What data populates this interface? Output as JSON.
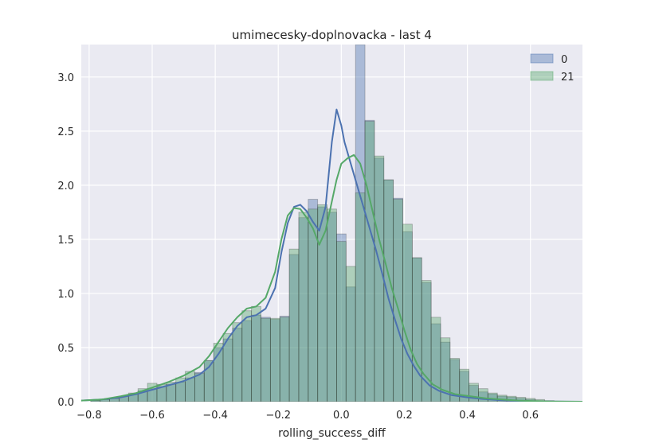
{
  "chart_data": {
    "type": "histogram",
    "title": "umimecesky-doplnovacka - last 4",
    "xlabel": "rolling_success_diff",
    "ylabel": "",
    "xlim": [
      -0.825,
      0.765
    ],
    "ylim": [
      0,
      3.3
    ],
    "x_ticks": [
      -0.8,
      -0.6,
      -0.4,
      -0.2,
      0.0,
      0.2,
      0.4,
      0.6
    ],
    "x_tick_labels": [
      "−0.8",
      "−0.6",
      "−0.4",
      "−0.2",
      "0.0",
      "0.2",
      "0.4",
      "0.6"
    ],
    "y_ticks": [
      0.0,
      0.5,
      1.0,
      1.5,
      2.0,
      2.5,
      3.0
    ],
    "y_tick_labels": [
      "0.0",
      "0.5",
      "1.0",
      "1.5",
      "2.0",
      "2.5",
      "3.0"
    ],
    "grid": true,
    "legend_position": "top-right",
    "bin_width": 0.03,
    "bins_start": -0.795,
    "series": [
      {
        "name": "0",
        "color": "#4c72b0",
        "hist_values": [
          0.01,
          0.02,
          0.03,
          0.05,
          0.07,
          0.1,
          0.12,
          0.14,
          0.16,
          0.18,
          0.22,
          0.27,
          0.38,
          0.5,
          0.58,
          0.68,
          0.75,
          0.8,
          0.78,
          0.76,
          0.79,
          1.36,
          1.7,
          1.87,
          1.8,
          1.75,
          1.55,
          1.06,
          3.3,
          2.6,
          2.25,
          2.05,
          1.88,
          1.57,
          1.33,
          1.1,
          0.72,
          0.55,
          0.39,
          0.28,
          0.15,
          0.09,
          0.07,
          0.05,
          0.04,
          0.03,
          0.02,
          0.01,
          0.005,
          0.003,
          0.002,
          0.001,
          0.001
        ],
        "kde_x": [
          -0.825,
          -0.76,
          -0.7,
          -0.65,
          -0.6,
          -0.55,
          -0.5,
          -0.45,
          -0.42,
          -0.39,
          -0.36,
          -0.33,
          -0.3,
          -0.27,
          -0.24,
          -0.21,
          -0.19,
          -0.17,
          -0.15,
          -0.13,
          -0.11,
          -0.09,
          -0.07,
          -0.05,
          -0.03,
          -0.015,
          0.0,
          0.01,
          0.03,
          0.05,
          0.07,
          0.09,
          0.11,
          0.13,
          0.15,
          0.17,
          0.19,
          0.21,
          0.23,
          0.25,
          0.28,
          0.31,
          0.35,
          0.4,
          0.45,
          0.5,
          0.55,
          0.6,
          0.65,
          0.7,
          0.765
        ],
        "kde_y": [
          0.01,
          0.02,
          0.04,
          0.07,
          0.11,
          0.15,
          0.19,
          0.25,
          0.32,
          0.44,
          0.58,
          0.7,
          0.78,
          0.8,
          0.86,
          1.05,
          1.38,
          1.65,
          1.8,
          1.82,
          1.76,
          1.66,
          1.58,
          1.8,
          2.4,
          2.7,
          2.55,
          2.4,
          2.2,
          2.0,
          1.8,
          1.6,
          1.4,
          1.18,
          0.95,
          0.76,
          0.58,
          0.44,
          0.33,
          0.24,
          0.15,
          0.1,
          0.06,
          0.04,
          0.025,
          0.015,
          0.008,
          0.004,
          0.002,
          0.001,
          0.0
        ]
      },
      {
        "name": "21",
        "color": "#55a868",
        "hist_values": [
          0.01,
          0.02,
          0.03,
          0.05,
          0.08,
          0.12,
          0.17,
          0.16,
          0.18,
          0.22,
          0.28,
          0.26,
          0.38,
          0.54,
          0.63,
          0.73,
          0.84,
          0.88,
          0.77,
          0.77,
          0.78,
          1.41,
          1.75,
          1.78,
          1.82,
          1.78,
          1.48,
          1.25,
          1.93,
          2.59,
          2.27,
          2.05,
          1.87,
          1.64,
          1.33,
          1.12,
          0.78,
          0.59,
          0.4,
          0.3,
          0.17,
          0.12,
          0.08,
          0.06,
          0.05,
          0.04,
          0.03,
          0.02,
          0.01,
          0.005,
          0.002,
          0.001,
          0.001
        ],
        "kde_x": [
          -0.825,
          -0.76,
          -0.7,
          -0.65,
          -0.6,
          -0.55,
          -0.5,
          -0.45,
          -0.42,
          -0.39,
          -0.36,
          -0.33,
          -0.3,
          -0.27,
          -0.24,
          -0.21,
          -0.19,
          -0.17,
          -0.15,
          -0.13,
          -0.11,
          -0.09,
          -0.07,
          -0.05,
          -0.03,
          -0.015,
          0.0,
          0.02,
          0.04,
          0.06,
          0.08,
          0.1,
          0.12,
          0.14,
          0.16,
          0.18,
          0.2,
          0.22,
          0.24,
          0.26,
          0.29,
          0.32,
          0.36,
          0.41,
          0.46,
          0.51,
          0.56,
          0.61,
          0.66,
          0.71,
          0.765
        ],
        "kde_y": [
          0.01,
          0.02,
          0.05,
          0.08,
          0.13,
          0.18,
          0.24,
          0.32,
          0.42,
          0.55,
          0.68,
          0.78,
          0.86,
          0.88,
          0.96,
          1.2,
          1.5,
          1.72,
          1.79,
          1.78,
          1.7,
          1.6,
          1.45,
          1.58,
          1.85,
          2.05,
          2.2,
          2.25,
          2.28,
          2.2,
          2.0,
          1.75,
          1.5,
          1.28,
          1.05,
          0.86,
          0.66,
          0.48,
          0.35,
          0.26,
          0.16,
          0.11,
          0.07,
          0.05,
          0.03,
          0.02,
          0.01,
          0.005,
          0.002,
          0.001,
          0.0
        ]
      }
    ]
  }
}
